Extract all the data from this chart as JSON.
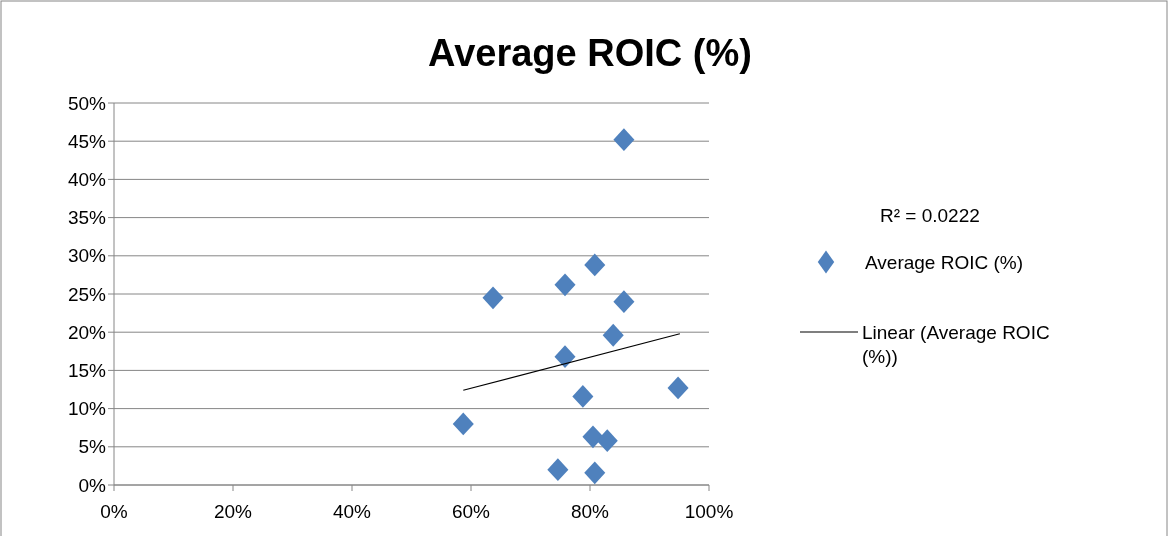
{
  "chart_data": {
    "type": "scatter",
    "title": "Average ROIC (%)",
    "xlim": [
      0,
      100
    ],
    "ylim": [
      0,
      50
    ],
    "xticks": [
      {
        "value": 0,
        "label": "0%"
      },
      {
        "value": 20,
        "label": "20%"
      },
      {
        "value": 40,
        "label": "40%"
      },
      {
        "value": 60,
        "label": "60%"
      },
      {
        "value": 80,
        "label": "80%"
      },
      {
        "value": 100,
        "label": "100%"
      }
    ],
    "yticks": [
      {
        "value": 0,
        "label": "0%"
      },
      {
        "value": 5,
        "label": "5%"
      },
      {
        "value": 10,
        "label": "10%"
      },
      {
        "value": 15,
        "label": "15%"
      },
      {
        "value": 20,
        "label": "20%"
      },
      {
        "value": 25,
        "label": "25%"
      },
      {
        "value": 30,
        "label": "30%"
      },
      {
        "value": 35,
        "label": "35%"
      },
      {
        "value": 40,
        "label": "40%"
      },
      {
        "value": 45,
        "label": "45%"
      },
      {
        "value": 50,
        "label": "50%"
      }
    ],
    "grid": "y",
    "legend": "right",
    "annotations": [
      "R² = 0.0222"
    ],
    "series": [
      {
        "name": "Average ROIC (%)",
        "marker": "diamond",
        "color": "#4f81bd",
        "x": [
          85.7,
          80.8,
          75.8,
          63.7,
          85.7,
          83.9,
          75.8,
          94.8,
          78.8,
          58.7,
          80.5,
          82.9,
          74.6,
          80.8
        ],
        "values": [
          45.2,
          28.8,
          26.2,
          24.5,
          24.0,
          19.6,
          16.8,
          12.7,
          11.6,
          8.0,
          6.3,
          5.8,
          2.0,
          1.6
        ]
      },
      {
        "name": "Linear (Average ROIC (%))",
        "type": "line",
        "color": "#000000",
        "line_style": "solid",
        "marker": "none",
        "x": [
          58.7,
          95.1
        ],
        "values": [
          12.4,
          19.8
        ]
      }
    ]
  }
}
